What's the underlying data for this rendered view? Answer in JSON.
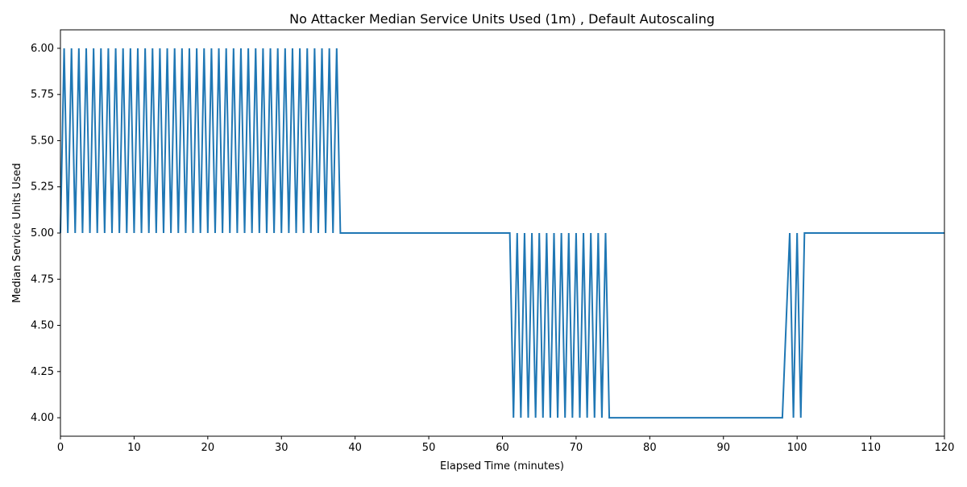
{
  "chart_data": {
    "type": "line",
    "title": "No Attacker Median Service Units Used (1m) , Default Autoscaling",
    "x_label": "Elapsed Time (minutes)",
    "y_label": "Median Service Units Used",
    "xlim": [
      0,
      120
    ],
    "ylim": [
      3.9,
      6.1
    ],
    "xticks": [
      0,
      10,
      20,
      30,
      40,
      50,
      60,
      70,
      80,
      90,
      100,
      110,
      120
    ],
    "yticks": [
      {
        "value": 4,
        "label": "4.00"
      },
      4.25,
      {
        "value": 4.5,
        "label": "4.50"
      },
      4.75,
      {
        "value": 5,
        "label": "5.00"
      },
      5.25,
      {
        "value": 5.5,
        "label": "5.50"
      },
      5.75,
      {
        "value": 6,
        "label": "6.00"
      }
    ],
    "series": [
      {
        "color": "#1f77b4",
        "x": [
          0,
          0.5,
          1,
          1.5,
          2,
          2.5,
          3,
          3.5,
          4,
          4.5,
          5,
          5.5,
          6,
          6.5,
          7,
          7.5,
          8,
          8.5,
          9,
          9.5,
          10,
          10.5,
          11,
          11.5,
          12,
          12.5,
          13,
          13.5,
          14,
          14.5,
          15,
          15.5,
          16,
          16.5,
          17,
          17.5,
          18,
          18.5,
          19,
          19.5,
          20,
          20.5,
          21,
          21.5,
          22,
          22.5,
          23,
          23.5,
          24,
          24.5,
          25,
          25.5,
          26,
          26.5,
          27,
          27.5,
          28,
          28.5,
          29,
          29.5,
          30,
          30.5,
          31,
          31.5,
          32,
          32.5,
          33,
          33.5,
          34,
          34.5,
          35,
          35.5,
          36,
          36.5,
          37,
          37.5,
          38,
          40,
          42,
          44,
          46,
          48,
          50,
          52,
          54,
          56,
          58,
          60,
          61,
          61.5,
          62,
          62.5,
          63,
          63.5,
          64,
          64.5,
          65,
          65.5,
          66,
          66.5,
          67,
          67.5,
          68,
          68.5,
          69,
          69.5,
          70,
          70.5,
          71,
          71.5,
          72,
          72.5,
          73,
          73.5,
          74,
          74.5,
          76,
          78,
          80,
          82,
          84,
          86,
          88,
          90,
          92,
          94,
          96,
          98,
          99,
          99.5,
          100,
          100.5,
          101,
          102,
          104,
          106,
          108,
          110,
          112,
          114,
          116,
          118,
          120
        ],
        "values": [
          5,
          6,
          5,
          6,
          5,
          6,
          5,
          6,
          5,
          6,
          5,
          6,
          5,
          6,
          5,
          6,
          5,
          6,
          5,
          6,
          5,
          6,
          5,
          6,
          5,
          6,
          5,
          6,
          5,
          6,
          5,
          6,
          5,
          6,
          5,
          6,
          5,
          6,
          5,
          6,
          5,
          6,
          5,
          6,
          5,
          6,
          5,
          6,
          5,
          6,
          5,
          6,
          5,
          6,
          5,
          6,
          5,
          6,
          5,
          6,
          5,
          6,
          5,
          6,
          5,
          6,
          5,
          6,
          5,
          6,
          5,
          6,
          5,
          6,
          5,
          6,
          5,
          5,
          5,
          5,
          5,
          5,
          5,
          5,
          5,
          5,
          5,
          5,
          5,
          4,
          5,
          4,
          5,
          4,
          5,
          4,
          5,
          4,
          5,
          4,
          5,
          4,
          5,
          4,
          5,
          4,
          5,
          4,
          5,
          4,
          5,
          4,
          5,
          4,
          5,
          4,
          4,
          4,
          4,
          4,
          4,
          4,
          4,
          4,
          4,
          4,
          4,
          4,
          5,
          4,
          5,
          4,
          5,
          5,
          5,
          5,
          5,
          5,
          5,
          5,
          5,
          5,
          5
        ]
      }
    ]
  }
}
